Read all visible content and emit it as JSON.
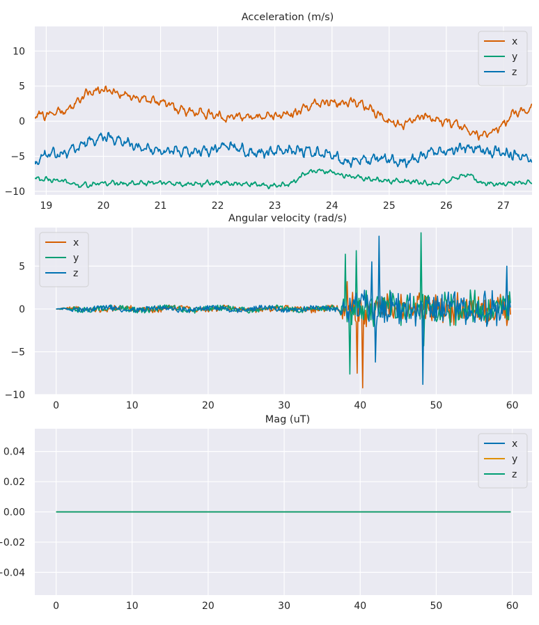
{
  "colors": {
    "orange": "#d55e00",
    "green": "#009e73",
    "blue": "#0072b2",
    "gold": "#de8f05"
  },
  "chart_data": [
    {
      "type": "line",
      "title": "Acceleration (m/s)",
      "xlim": [
        18.8,
        27.5
      ],
      "ylim": [
        -10.5,
        13.5
      ],
      "xticks": [
        19,
        20,
        21,
        22,
        23,
        24,
        25,
        26,
        27
      ],
      "yticks": [
        -10,
        -5,
        0,
        5,
        10
      ],
      "legend_position": "top-right",
      "series": [
        {
          "name": "x",
          "color": "#d55e00",
          "x": [
            18.8,
            19.0,
            19.3,
            19.5,
            19.7,
            19.9,
            20.1,
            20.3,
            20.5,
            20.8,
            21.0,
            21.3,
            21.6,
            21.9,
            22.1,
            22.4,
            22.7,
            23.0,
            23.3,
            23.5,
            23.7,
            24.0,
            24.2,
            24.4,
            24.6,
            24.8,
            25.0,
            25.2,
            25.4,
            25.6,
            25.8,
            26.0,
            26.2,
            26.4,
            26.6,
            26.8,
            27.0,
            27.2,
            27.5
          ],
          "y": [
            0.8,
            1.0,
            1.5,
            2.5,
            3.8,
            4.3,
            4.5,
            3.8,
            3.5,
            3.0,
            2.8,
            1.8,
            1.3,
            1.0,
            0.5,
            0.7,
            0.6,
            0.8,
            1.0,
            1.8,
            2.5,
            2.8,
            2.6,
            2.8,
            2.0,
            1.0,
            0.0,
            -0.5,
            0.3,
            0.8,
            0.2,
            -0.1,
            -0.5,
            -1.5,
            -2.0,
            -1.5,
            -0.5,
            1.2,
            1.8
          ],
          "noise": 0.55
        },
        {
          "name": "y",
          "color": "#009e73",
          "x": [
            18.8,
            19.2,
            19.6,
            20.0,
            20.5,
            21.0,
            21.5,
            22.0,
            22.5,
            23.0,
            23.3,
            23.5,
            23.7,
            24.0,
            24.3,
            24.6,
            25.0,
            25.4,
            25.8,
            26.2,
            26.4,
            26.6,
            27.0,
            27.5
          ],
          "y": [
            -8.2,
            -8.4,
            -9.2,
            -8.8,
            -8.9,
            -8.8,
            -9.0,
            -8.8,
            -9.0,
            -9.2,
            -8.9,
            -7.6,
            -7.0,
            -7.3,
            -7.8,
            -8.2,
            -8.5,
            -8.6,
            -9.0,
            -8.0,
            -7.5,
            -8.8,
            -8.9,
            -8.7
          ],
          "noise": 0.3
        },
        {
          "name": "z",
          "color": "#0072b2",
          "x": [
            18.8,
            19.0,
            19.3,
            19.6,
            19.9,
            20.1,
            20.4,
            20.7,
            21.0,
            21.3,
            21.6,
            21.9,
            22.2,
            22.5,
            22.8,
            23.1,
            23.4,
            23.7,
            24.0,
            24.3,
            24.6,
            24.9,
            25.2,
            25.5,
            25.8,
            26.1,
            26.4,
            26.6,
            26.8,
            27.1,
            27.5
          ],
          "y": [
            -5.8,
            -4.8,
            -4.5,
            -3.5,
            -2.5,
            -2.3,
            -3.0,
            -3.8,
            -4.2,
            -4.3,
            -4.5,
            -4.0,
            -3.5,
            -4.3,
            -4.5,
            -4.2,
            -4.0,
            -4.5,
            -5.0,
            -5.8,
            -5.5,
            -5.2,
            -6.0,
            -5.2,
            -4.5,
            -4.2,
            -3.8,
            -4.0,
            -4.4,
            -4.5,
            -5.6
          ],
          "noise": 0.7
        }
      ]
    },
    {
      "type": "line",
      "title": "Angular velocity (rad/s)",
      "xlim": [
        -2.8,
        62.6
      ],
      "ylim": [
        -10.0,
        9.5
      ],
      "xticks": [
        0,
        10,
        20,
        30,
        40,
        50,
        60
      ],
      "yticks": [
        -10,
        -5,
        0,
        5
      ],
      "legend_position": "top-left",
      "series": [
        {
          "name": "x",
          "color": "#d55e00",
          "x_end": 59.8,
          "quiet_until": 37.0,
          "quiet_amp": 0.35,
          "active_amp": 2.2,
          "spikes": [
            {
              "x": 40.3,
              "y": -9.2
            },
            {
              "x": 39.6,
              "y": -7.5
            },
            {
              "x": 38.3,
              "y": 3.2
            }
          ]
        },
        {
          "name": "y",
          "color": "#009e73",
          "x_end": 59.8,
          "quiet_until": 37.0,
          "quiet_amp": 0.35,
          "active_amp": 2.0,
          "spikes": [
            {
              "x": 48.0,
              "y": 8.9
            },
            {
              "x": 39.5,
              "y": 6.8
            },
            {
              "x": 38.6,
              "y": -7.6
            },
            {
              "x": 38.0,
              "y": 6.4
            },
            {
              "x": 48.3,
              "y": -4.3
            }
          ]
        },
        {
          "name": "z",
          "color": "#0072b2",
          "x_end": 59.8,
          "quiet_until": 37.0,
          "quiet_amp": 0.3,
          "active_amp": 2.1,
          "spikes": [
            {
              "x": 42.5,
              "y": 8.5
            },
            {
              "x": 48.2,
              "y": -8.8
            },
            {
              "x": 42.0,
              "y": -6.2
            },
            {
              "x": 59.3,
              "y": 5.0
            },
            {
              "x": 41.5,
              "y": 5.5
            }
          ]
        }
      ]
    },
    {
      "type": "line",
      "title": "Mag (uT)",
      "xlim": [
        -2.8,
        62.6
      ],
      "ylim": [
        -0.055,
        0.055
      ],
      "xticks": [
        0,
        10,
        20,
        30,
        40,
        50,
        60
      ],
      "yticks": [
        -0.04,
        -0.02,
        0.0,
        0.02,
        0.04
      ],
      "ytick_labels": [
        "−0.04",
        "−0.02",
        "0.00",
        "0.02",
        "0.04"
      ],
      "legend_position": "top-right",
      "series": [
        {
          "name": "x",
          "color": "#0072b2",
          "x": [
            0,
            59.8
          ],
          "y": [
            0,
            0
          ]
        },
        {
          "name": "y",
          "color": "#de8f05",
          "x": [
            0,
            59.8
          ],
          "y": [
            0,
            0
          ]
        },
        {
          "name": "z",
          "color": "#009e73",
          "x": [
            0,
            59.8
          ],
          "y": [
            0,
            0
          ]
        }
      ]
    }
  ]
}
